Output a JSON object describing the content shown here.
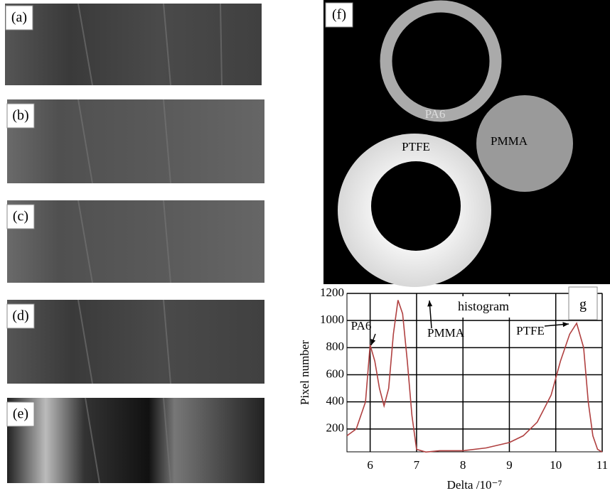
{
  "panels": {
    "labels": [
      "(a)",
      "(b)",
      "(c)",
      "(d)",
      "(e)",
      "(f)"
    ]
  },
  "image_f": {
    "labels": [
      "PA6",
      "PTFE",
      "PMMA"
    ]
  },
  "chart_data": {
    "type": "line",
    "panel_label": "g",
    "title": "histogram",
    "x_label": "Delta /10⁻⁷",
    "y_label": "Pixel number",
    "x": [
      5.5,
      5.7,
      5.9,
      6.0,
      6.1,
      6.2,
      6.3,
      6.4,
      6.5,
      6.6,
      6.7,
      6.8,
      6.9,
      7.0,
      7.2,
      7.5,
      8.0,
      8.5,
      9.0,
      9.3,
      9.6,
      9.9,
      10.1,
      10.3,
      10.45,
      10.6,
      10.7,
      10.8,
      10.9,
      11.0
    ],
    "values": [
      150,
      200,
      400,
      820,
      700,
      500,
      370,
      500,
      900,
      1150,
      1050,
      700,
      300,
      50,
      30,
      40,
      40,
      60,
      100,
      150,
      250,
      450,
      700,
      900,
      980,
      800,
      400,
      150,
      50,
      30
    ],
    "color": "#b04040",
    "xlim": [
      5.5,
      11
    ],
    "xticks": [
      6,
      7,
      8,
      9,
      10,
      11
    ],
    "ylim": [
      0,
      1200
    ],
    "yticks": [
      200,
      400,
      600,
      800,
      1000,
      1200
    ],
    "grid": true,
    "annotations": [
      "PA6",
      "PMMA",
      "PTFE"
    ]
  }
}
